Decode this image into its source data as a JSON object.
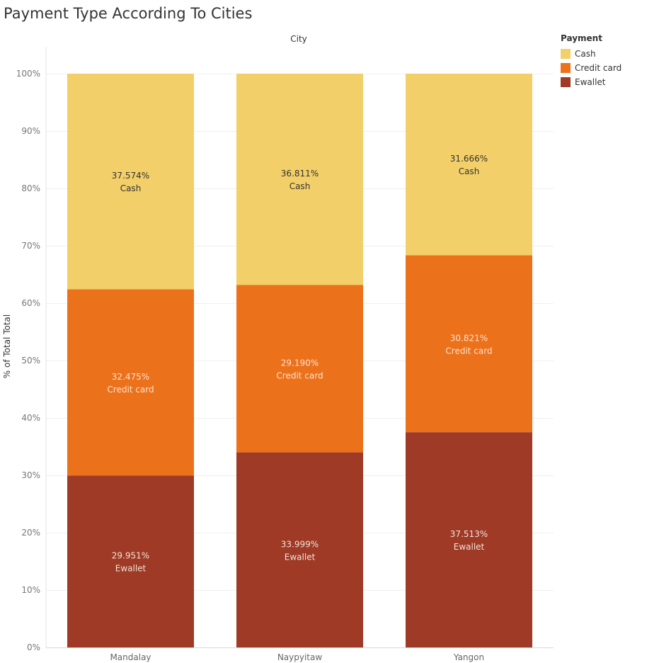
{
  "chart_data": {
    "type": "bar",
    "stacked": true,
    "title": "Payment Type According To Cities",
    "column_header": "City",
    "ylabel": "% of Total Total",
    "ylim": [
      0,
      100
    ],
    "yticks": [
      "0%",
      "10%",
      "20%",
      "30%",
      "40%",
      "50%",
      "60%",
      "70%",
      "80%",
      "90%",
      "100%"
    ],
    "categories": [
      "Mandalay",
      "Naypyitaw",
      "Yangon"
    ],
    "series": [
      {
        "name": "Ewallet",
        "color": "#9e3a26",
        "label_color": "#f3e2d8",
        "values": [
          29.951,
          33.999,
          37.513
        ],
        "labels": [
          "29.951%",
          "33.999%",
          "37.513%"
        ]
      },
      {
        "name": "Credit card",
        "color": "#ec711b",
        "label_color": "#fbe3cf",
        "values": [
          32.475,
          29.19,
          30.821
        ],
        "labels": [
          "32.475%",
          "29.190%",
          "30.821%"
        ]
      },
      {
        "name": "Cash",
        "color": "#f2cf68",
        "label_color": "#333333",
        "values": [
          37.574,
          36.811,
          31.666
        ],
        "labels": [
          "37.574%",
          "36.811%",
          "31.666%"
        ]
      }
    ],
    "legend": {
      "title": "Payment",
      "position": "top-right",
      "items": [
        {
          "name": "Cash",
          "color": "#f2cf68"
        },
        {
          "name": "Credit card",
          "color": "#ec711b"
        },
        {
          "name": "Ewallet",
          "color": "#9e3a26"
        }
      ]
    },
    "grid": true
  }
}
